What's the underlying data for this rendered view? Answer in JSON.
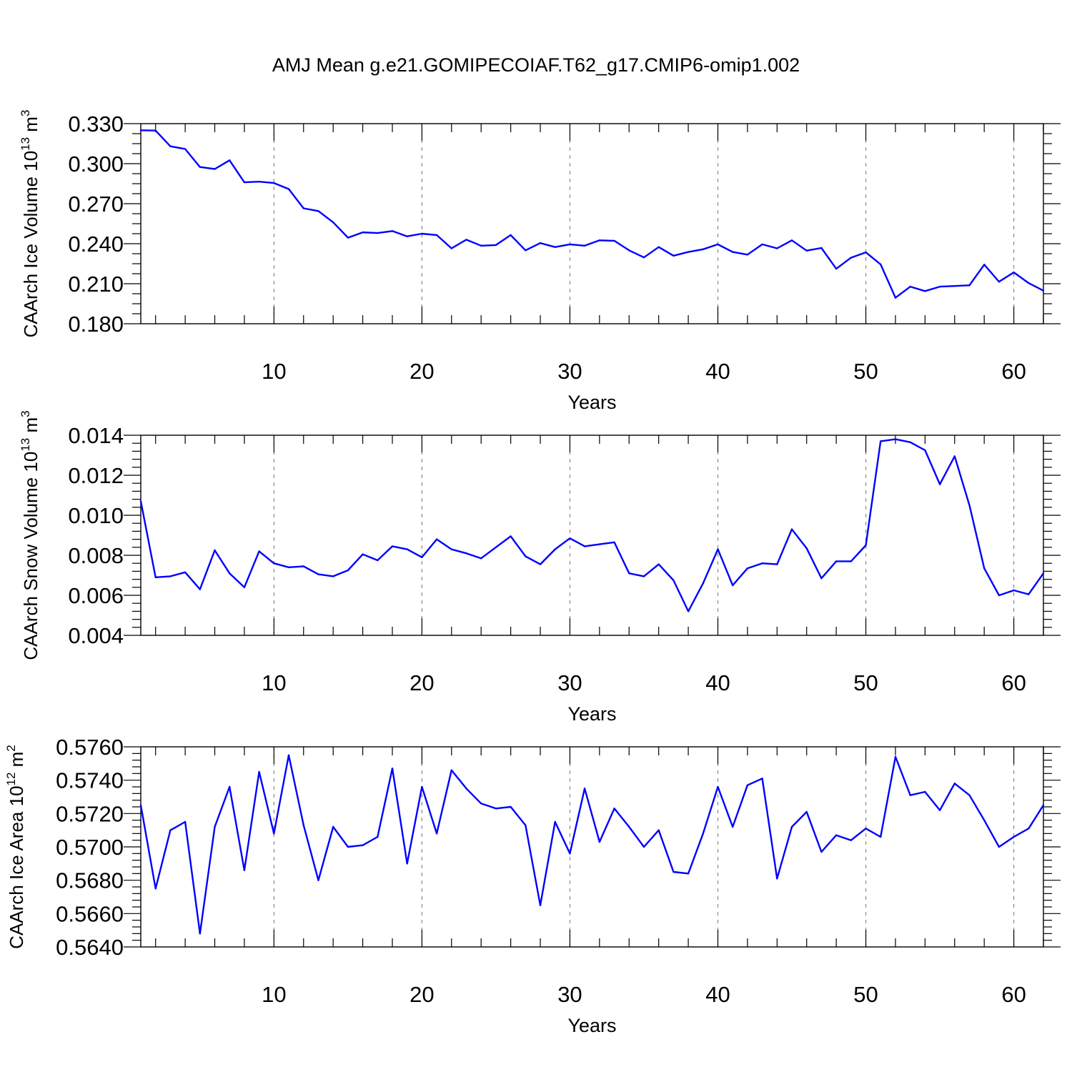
{
  "figure": {
    "title": "AMJ Mean g.e21.GOMIPECOIAF.T62_g17.CMIP6-omip1.002",
    "series_color": "#0000ff"
  },
  "chart_data": [
    {
      "type": "line",
      "title": "AMJ Mean g.e21.GOMIPECOIAF.T62_g17.CMIP6-omip1.002",
      "xlabel": "Years",
      "ylabel": {
        "prefix": "CAArch Ice Volume 10",
        "exponent": "13",
        "unit": " m",
        "unit_exponent": "3"
      },
      "xlim": [
        1,
        62
      ],
      "ylim": [
        0.18,
        0.33
      ],
      "xticks": [
        "10",
        "20",
        "30",
        "40",
        "50",
        "60"
      ],
      "yticks": [
        "0.180",
        "0.210",
        "0.240",
        "0.270",
        "0.300",
        "0.330"
      ],
      "grid": "vertical dashed at x tick values",
      "x": [
        1,
        2,
        3,
        4,
        5,
        6,
        7,
        8,
        9,
        10,
        11,
        12,
        13,
        14,
        15,
        16,
        17,
        18,
        19,
        20,
        21,
        22,
        23,
        24,
        25,
        26,
        27,
        28,
        29,
        30,
        31,
        32,
        33,
        34,
        35,
        36,
        37,
        38,
        39,
        40,
        41,
        42,
        43,
        44,
        45,
        46,
        47,
        48,
        49,
        50,
        51,
        52,
        53,
        54,
        55,
        56,
        57,
        58,
        59,
        60,
        61,
        62
      ],
      "values": [
        0.325,
        0.3248,
        0.313,
        0.311,
        0.2975,
        0.296,
        0.3025,
        0.286,
        0.2865,
        0.2855,
        0.281,
        0.2665,
        0.2645,
        0.256,
        0.2445,
        0.2485,
        0.248,
        0.2495,
        0.2455,
        0.2475,
        0.2465,
        0.2365,
        0.243,
        0.2385,
        0.239,
        0.2465,
        0.235,
        0.2405,
        0.2375,
        0.2395,
        0.2385,
        0.2425,
        0.2422,
        0.235,
        0.2297,
        0.2375,
        0.231,
        0.2338,
        0.2358,
        0.2395,
        0.2338,
        0.2318,
        0.2395,
        0.2365,
        0.2425,
        0.2348,
        0.2368,
        0.2212,
        0.2295,
        0.2335,
        0.2245,
        0.1995,
        0.2078,
        0.2045,
        0.2078,
        0.2083,
        0.2088,
        0.2243,
        0.2115,
        0.2185,
        0.2105,
        0.2048
      ]
    },
    {
      "type": "line",
      "xlabel": "Years",
      "ylabel": {
        "prefix": "CAArch Snow Volume 10",
        "exponent": "13",
        "unit": " m",
        "unit_exponent": "3"
      },
      "xlim": [
        1,
        62
      ],
      "ylim": [
        0.004,
        0.014
      ],
      "xticks": [
        "10",
        "20",
        "30",
        "40",
        "50",
        "60"
      ],
      "yticks": [
        "0.004",
        "0.006",
        "0.008",
        "0.010",
        "0.012",
        "0.014"
      ],
      "grid": "vertical dashed at x tick values",
      "x": [
        1,
        2,
        3,
        4,
        5,
        6,
        7,
        8,
        9,
        10,
        11,
        12,
        13,
        14,
        15,
        16,
        17,
        18,
        19,
        20,
        21,
        22,
        23,
        24,
        25,
        26,
        27,
        28,
        29,
        30,
        31,
        32,
        33,
        34,
        35,
        36,
        37,
        38,
        39,
        40,
        41,
        42,
        43,
        44,
        45,
        46,
        47,
        48,
        49,
        50,
        51,
        52,
        53,
        54,
        55,
        56,
        57,
        58,
        59,
        60,
        61,
        62
      ],
      "values": [
        0.0107,
        0.0069,
        0.00695,
        0.00715,
        0.0063,
        0.00825,
        0.0071,
        0.0064,
        0.0082,
        0.0076,
        0.0074,
        0.00745,
        0.00705,
        0.00695,
        0.00725,
        0.00805,
        0.00775,
        0.00845,
        0.0083,
        0.0079,
        0.0088,
        0.0083,
        0.0081,
        0.00785,
        0.0084,
        0.00895,
        0.00795,
        0.00755,
        0.0083,
        0.00885,
        0.00845,
        0.00855,
        0.00865,
        0.0071,
        0.00695,
        0.00755,
        0.00675,
        0.0052,
        0.0066,
        0.0083,
        0.0065,
        0.00735,
        0.0076,
        0.00755,
        0.0093,
        0.00835,
        0.00685,
        0.0077,
        0.0077,
        0.0085,
        0.0137,
        0.0138,
        0.01365,
        0.01325,
        0.01155,
        0.01295,
        0.0105,
        0.00735,
        0.006,
        0.00625,
        0.00605,
        0.0071
      ]
    },
    {
      "type": "line",
      "xlabel": "Years",
      "ylabel": {
        "prefix": "CAArch Ice Area 10",
        "exponent": "12",
        "unit": " m",
        "unit_exponent": "2"
      },
      "xlim": [
        1,
        62
      ],
      "ylim": [
        0.564,
        0.576
      ],
      "xticks": [
        "10",
        "20",
        "30",
        "40",
        "50",
        "60"
      ],
      "yticks": [
        "0.5640",
        "0.5660",
        "0.5680",
        "0.5700",
        "0.5720",
        "0.5740",
        "0.5760"
      ],
      "grid": "vertical dashed at x tick values",
      "x": [
        1,
        2,
        3,
        4,
        5,
        6,
        7,
        8,
        9,
        10,
        11,
        12,
        13,
        14,
        15,
        16,
        17,
        18,
        19,
        20,
        21,
        22,
        23,
        24,
        25,
        26,
        27,
        28,
        29,
        30,
        31,
        32,
        33,
        34,
        35,
        36,
        37,
        38,
        39,
        40,
        41,
        42,
        43,
        44,
        45,
        46,
        47,
        48,
        49,
        50,
        51,
        52,
        53,
        54,
        55,
        56,
        57,
        58,
        59,
        60,
        61,
        62
      ],
      "values": [
        0.5725,
        0.5675,
        0.571,
        0.5715,
        0.5648,
        0.5712,
        0.5736,
        0.5686,
        0.5745,
        0.5708,
        0.5755,
        0.5713,
        0.568,
        0.5712,
        0.57,
        0.5701,
        0.5706,
        0.5747,
        0.569,
        0.5736,
        0.5708,
        0.5746,
        0.5735,
        0.5726,
        0.5723,
        0.5724,
        0.5713,
        0.5665,
        0.5715,
        0.5696,
        0.5735,
        0.5703,
        0.5723,
        0.5712,
        0.57,
        0.571,
        0.5685,
        0.5684,
        0.5708,
        0.5736,
        0.5712,
        0.5737,
        0.5741,
        0.5681,
        0.5712,
        0.5721,
        0.5697,
        0.5707,
        0.5704,
        0.5711,
        0.5706,
        0.5754,
        0.5731,
        0.5733,
        0.5722,
        0.5738,
        0.5731,
        0.5716,
        0.57,
        0.5706,
        0.5711,
        0.5725
      ]
    }
  ]
}
